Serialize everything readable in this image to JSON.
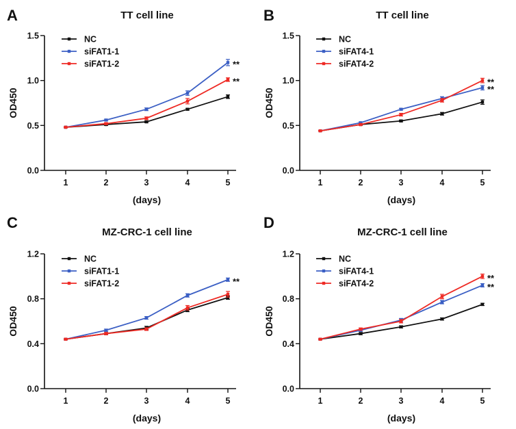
{
  "colors": {
    "NC": "#111111",
    "si1": "#3b5fc4",
    "si2": "#ee2a24",
    "axis": "#111111"
  },
  "chart_data": [
    {
      "panel_label": "A",
      "type": "line",
      "title": "TT cell line",
      "xlabel": "(days)",
      "ylabel": "OD450",
      "x": [
        1,
        2,
        3,
        4,
        5
      ],
      "ylim": [
        0,
        1.5
      ],
      "yticks": [
        "0.0",
        "0.5",
        "1.0",
        "1.5"
      ],
      "xticks": [
        "1",
        "2",
        "3",
        "4",
        "5"
      ],
      "legend_position": "top-left",
      "series": [
        {
          "name": "NC",
          "color_key": "NC",
          "values": [
            0.48,
            0.51,
            0.54,
            0.68,
            0.82
          ],
          "errors": [
            0.005,
            0.01,
            0.01,
            0.01,
            0.02
          ]
        },
        {
          "name": "siFAT1-1",
          "color_key": "si1",
          "values": [
            0.48,
            0.56,
            0.68,
            0.86,
            1.2
          ],
          "errors": [
            0.005,
            0.01,
            0.015,
            0.025,
            0.035
          ]
        },
        {
          "name": "siFAT1-2",
          "color_key": "si2",
          "values": [
            0.48,
            0.52,
            0.58,
            0.77,
            1.01
          ],
          "errors": [
            0.005,
            0.01,
            0.015,
            0.03,
            0.02
          ]
        }
      ],
      "annotations": [
        {
          "text": "**",
          "series": "siFAT1-1"
        },
        {
          "text": "**",
          "series": "siFAT1-2"
        }
      ]
    },
    {
      "panel_label": "B",
      "type": "line",
      "title": "TT cell line",
      "xlabel": "(days)",
      "ylabel": "OD450",
      "x": [
        1,
        2,
        3,
        4,
        5
      ],
      "ylim": [
        0,
        1.5
      ],
      "yticks": [
        "0.0",
        "0.5",
        "1.0",
        "1.5"
      ],
      "xticks": [
        "1",
        "2",
        "3",
        "4",
        "5"
      ],
      "legend_position": "top-left",
      "series": [
        {
          "name": "NC",
          "color_key": "NC",
          "values": [
            0.44,
            0.51,
            0.55,
            0.63,
            0.76
          ],
          "errors": [
            0.005,
            0.01,
            0.01,
            0.015,
            0.025
          ]
        },
        {
          "name": "siFAT4-1",
          "color_key": "si1",
          "values": [
            0.44,
            0.53,
            0.68,
            0.8,
            0.92
          ],
          "errors": [
            0.005,
            0.01,
            0.01,
            0.02,
            0.025
          ]
        },
        {
          "name": "siFAT4-2",
          "color_key": "si2",
          "values": [
            0.44,
            0.51,
            0.62,
            0.78,
            1.0
          ],
          "errors": [
            0.005,
            0.01,
            0.015,
            0.02,
            0.025
          ]
        }
      ],
      "annotations": [
        {
          "text": "**",
          "series": "siFAT4-2"
        },
        {
          "text": "**",
          "series": "siFAT4-1"
        }
      ]
    },
    {
      "panel_label": "C",
      "type": "line",
      "title": "MZ-CRC-1 cell line",
      "xlabel": "(days)",
      "ylabel": "OD450",
      "x": [
        1,
        2,
        3,
        4,
        5
      ],
      "ylim": [
        0,
        1.2
      ],
      "yticks": [
        "0.0",
        "0.4",
        "0.8",
        "1.2"
      ],
      "xticks": [
        "1",
        "2",
        "3",
        "4",
        "5"
      ],
      "legend_position": "top-left",
      "series": [
        {
          "name": "NC",
          "color_key": "NC",
          "values": [
            0.44,
            0.49,
            0.54,
            0.7,
            0.81
          ],
          "errors": [
            0.005,
            0.01,
            0.015,
            0.015,
            0.015
          ]
        },
        {
          "name": "siFAT1-1",
          "color_key": "si1",
          "values": [
            0.44,
            0.52,
            0.63,
            0.83,
            0.97
          ],
          "errors": [
            0.005,
            0.01,
            0.012,
            0.015,
            0.015
          ]
        },
        {
          "name": "siFAT1-2",
          "color_key": "si2",
          "values": [
            0.44,
            0.49,
            0.53,
            0.72,
            0.84
          ],
          "errors": [
            0.005,
            0.01,
            0.012,
            0.02,
            0.025
          ]
        }
      ],
      "annotations": [
        {
          "text": "**",
          "series": "siFAT1-1"
        }
      ]
    },
    {
      "panel_label": "D",
      "type": "line",
      "title": "MZ-CRC-1 cell line",
      "xlabel": "(days)",
      "ylabel": "OD450",
      "x": [
        1,
        2,
        3,
        4,
        5
      ],
      "ylim": [
        0,
        1.2
      ],
      "yticks": [
        "0.0",
        "0.4",
        "0.8",
        "1.2"
      ],
      "xticks": [
        "1",
        "2",
        "3",
        "4",
        "5"
      ],
      "legend_position": "top-left",
      "series": [
        {
          "name": "NC",
          "color_key": "NC",
          "values": [
            0.44,
            0.49,
            0.55,
            0.62,
            0.75
          ],
          "errors": [
            0.005,
            0.01,
            0.01,
            0.01,
            0.01
          ]
        },
        {
          "name": "siFAT4-1",
          "color_key": "si1",
          "values": [
            0.44,
            0.52,
            0.61,
            0.77,
            0.92
          ],
          "errors": [
            0.005,
            0.01,
            0.015,
            0.015,
            0.015
          ]
        },
        {
          "name": "siFAT4-2",
          "color_key": "si2",
          "values": [
            0.44,
            0.53,
            0.6,
            0.82,
            1.0
          ],
          "errors": [
            0.005,
            0.01,
            0.015,
            0.02,
            0.02
          ]
        }
      ],
      "annotations": [
        {
          "text": "**",
          "series": "siFAT4-2"
        },
        {
          "text": "**",
          "series": "siFAT4-1"
        }
      ]
    }
  ]
}
